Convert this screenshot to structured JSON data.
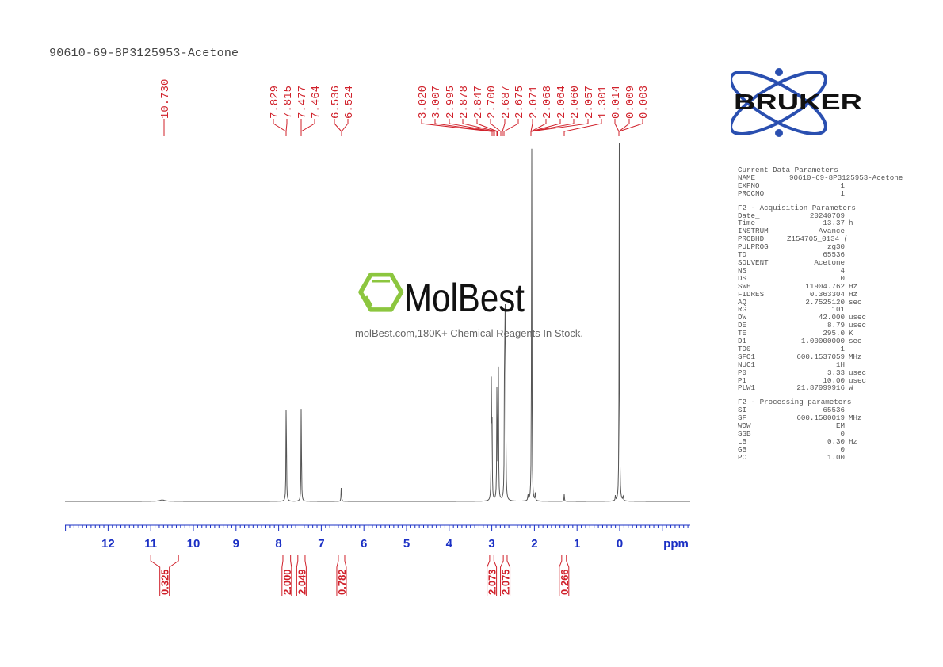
{
  "title": "90610-69-8P3125953-Acetone",
  "colors": {
    "peak_labels": "#d0202a",
    "axis": "#1a2fc4",
    "spectrum": "#555555",
    "bruker_blue": "#2a4fb0",
    "molbest_green": "#8cc63f"
  },
  "watermark": {
    "brand": "MolBest",
    "tagline": "molBest.com,180K+ Chemical Reagents In Stock."
  },
  "logo": {
    "text": "BRUKER"
  },
  "params": {
    "current": {
      "header": "Current Data Parameters",
      "rows": [
        {
          "k": "NAME",
          "v": "90610-69-8P3125953-Acetone",
          "u": ""
        },
        {
          "k": "EXPNO",
          "v": "1",
          "u": ""
        },
        {
          "k": "PROCNO",
          "v": "1",
          "u": ""
        }
      ]
    },
    "acq": {
      "header": "F2 - Acquisition Parameters",
      "rows": [
        {
          "k": "Date_",
          "v": "20240709",
          "u": ""
        },
        {
          "k": "Time",
          "v": "13.37",
          "u": "h"
        },
        {
          "k": "INSTRUM",
          "v": "Avance",
          "u": ""
        },
        {
          "k": "PROBHD",
          "v": "Z154705_0134 (",
          "u": ""
        },
        {
          "k": "PULPROG",
          "v": "zg30",
          "u": ""
        },
        {
          "k": "TD",
          "v": "65536",
          "u": ""
        },
        {
          "k": "SOLVENT",
          "v": "Acetone",
          "u": ""
        },
        {
          "k": "NS",
          "v": "4",
          "u": ""
        },
        {
          "k": "DS",
          "v": "0",
          "u": ""
        },
        {
          "k": "SWH",
          "v": "11904.762",
          "u": "Hz"
        },
        {
          "k": "FIDRES",
          "v": "0.363304",
          "u": "Hz"
        },
        {
          "k": "AQ",
          "v": "2.7525120",
          "u": "sec"
        },
        {
          "k": "RG",
          "v": "101",
          "u": ""
        },
        {
          "k": "DW",
          "v": "42.000",
          "u": "usec"
        },
        {
          "k": "DE",
          "v": "8.79",
          "u": "usec"
        },
        {
          "k": "TE",
          "v": "295.0",
          "u": "K"
        },
        {
          "k": "D1",
          "v": "1.00000000",
          "u": "sec"
        },
        {
          "k": "TD0",
          "v": "1",
          "u": ""
        },
        {
          "k": "SFO1",
          "v": "600.1537059",
          "u": "MHz"
        },
        {
          "k": "NUC1",
          "v": "1H",
          "u": ""
        },
        {
          "k": "P0",
          "v": "3.33",
          "u": "usec"
        },
        {
          "k": "P1",
          "v": "10.00",
          "u": "usec"
        },
        {
          "k": "PLW1",
          "v": "21.87999916",
          "u": "W"
        }
      ]
    },
    "proc": {
      "header": "F2 - Processing parameters",
      "rows": [
        {
          "k": "SI",
          "v": "65536",
          "u": ""
        },
        {
          "k": "SF",
          "v": "600.1500019",
          "u": "MHz"
        },
        {
          "k": "WDW",
          "v": "EM",
          "u": ""
        },
        {
          "k": "SSB",
          "v": "0",
          "u": ""
        },
        {
          "k": "LB",
          "v": "0.30",
          "u": "Hz"
        },
        {
          "k": "GB",
          "v": "0",
          "u": ""
        },
        {
          "k": "PC",
          "v": "1.00",
          "u": ""
        }
      ]
    }
  },
  "chart_data": {
    "type": "line",
    "title": "90610-69-8P3125953-Acetone",
    "xlabel": "ppm",
    "ylabel": "",
    "xlim": [
      13.0,
      -1.65
    ],
    "x_ticks": [
      12,
      11,
      10,
      9,
      8,
      7,
      6,
      5,
      4,
      3,
      2,
      1,
      0
    ],
    "x_reversed": true,
    "grid": false,
    "peak_labels": [
      "10.730",
      "7.829",
      "7.815",
      "7.477",
      "7.464",
      "6.536",
      "6.524",
      "3.020",
      "3.007",
      "2.995",
      "2.878",
      "2.847",
      "2.700",
      "2.687",
      "2.675",
      "2.071",
      "2.068",
      "2.064",
      "2.060",
      "2.057",
      "1.301",
      "0.014",
      "0.009",
      "0.003"
    ],
    "peaks": [
      {
        "ppm": 10.73,
        "rel_height": 0.004
      },
      {
        "ppm": 7.822,
        "rel_height": 0.33
      },
      {
        "ppm": 7.47,
        "rel_height": 0.29
      },
      {
        "ppm": 6.53,
        "rel_height": 0.05
      },
      {
        "ppm": 3.01,
        "rel_height": 0.33
      },
      {
        "ppm": 2.995,
        "rel_height": 0.23
      },
      {
        "ppm": 2.878,
        "rel_height": 0.38
      },
      {
        "ppm": 2.847,
        "rel_height": 0.46
      },
      {
        "ppm": 2.7,
        "rel_height": 0.46
      },
      {
        "ppm": 2.687,
        "rel_height": 0.42
      },
      {
        "ppm": 2.675,
        "rel_height": 0.31
      },
      {
        "ppm": 2.064,
        "rel_height": 1.0
      },
      {
        "ppm": 2.15,
        "rel_height": 0.02
      },
      {
        "ppm": 1.98,
        "rel_height": 0.02
      },
      {
        "ppm": 1.301,
        "rel_height": 0.02
      },
      {
        "ppm": 0.009,
        "rel_height": 1.0
      },
      {
        "ppm": 0.1,
        "rel_height": 0.015
      },
      {
        "ppm": -0.08,
        "rel_height": 0.015
      }
    ],
    "integrals": [
      {
        "from": 11.0,
        "to": 10.35,
        "value": "0.325"
      },
      {
        "from": 7.9,
        "to": 7.72,
        "value": "2.000"
      },
      {
        "from": 7.55,
        "to": 7.38,
        "value": "2.049"
      },
      {
        "from": 6.6,
        "to": 6.45,
        "value": "0.782"
      },
      {
        "from": 3.05,
        "to": 2.95,
        "value": "2.073"
      },
      {
        "from": 2.73,
        "to": 2.64,
        "value": "2.075"
      },
      {
        "from": 1.36,
        "to": 1.25,
        "value": "0.266"
      }
    ]
  }
}
